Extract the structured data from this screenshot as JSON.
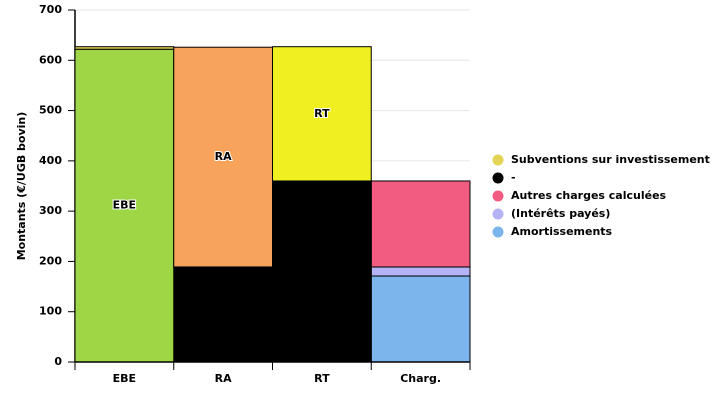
{
  "chart_data": {
    "type": "stacked-bar",
    "y_label": "Montants (€/UGB bovin)",
    "categories": [
      "EBE",
      "RA",
      "RT",
      "Charg."
    ],
    "ylim": [
      0,
      700
    ],
    "yticks": [
      0,
      100,
      200,
      300,
      400,
      500,
      600,
      700
    ],
    "grid": true,
    "series": [
      {
        "name": "Amortissements",
        "color": "#7cb5ec",
        "values": [
          null,
          null,
          null,
          171
        ]
      },
      {
        "name": "(Intérêts payés)",
        "color": "#b3b3f5",
        "values": [
          null,
          null,
          null,
          18
        ]
      },
      {
        "name": "Autres charges calculées",
        "color": "#f15c80",
        "values": [
          null,
          null,
          null,
          171
        ]
      },
      {
        "name": "-",
        "color": "#000000",
        "values": [
          null,
          189,
          360,
          null
        ]
      },
      {
        "colors": [
          "#9ed646",
          "#f7a35c",
          "#f0f020",
          null
        ],
        "values": [
          622,
          437,
          267,
          null
        ],
        "labels": [
          "EBE",
          "RA",
          "RT",
          null
        ]
      },
      {
        "name": "Subventions sur investissement",
        "color": "#e4d354",
        "values": [
          5,
          null,
          null,
          null
        ]
      }
    ],
    "legend_order": [
      5,
      3,
      2,
      1,
      0
    ]
  }
}
